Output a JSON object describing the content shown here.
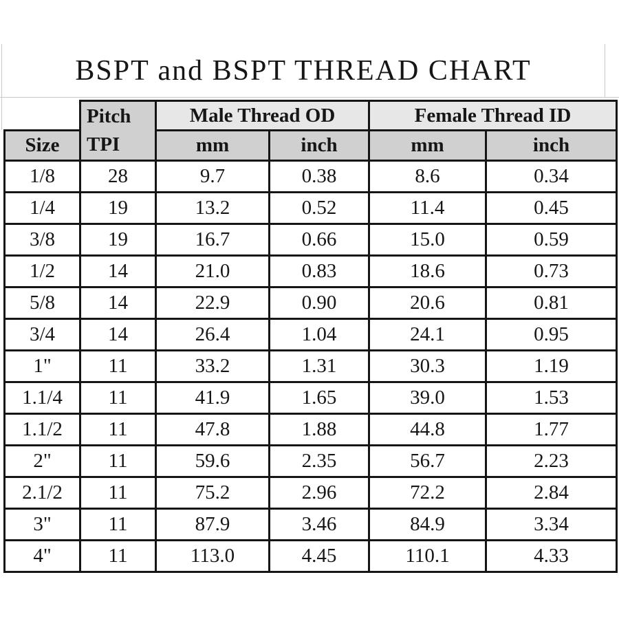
{
  "title": "BSPT and BSPT THREAD CHART",
  "table": {
    "header": {
      "size_label": "Size",
      "pitch_label": "Pitch",
      "tpi_label": "TPI",
      "male_group_label": "Male Thread OD",
      "female_group_label": "Female Thread ID",
      "male_mm_label": "mm",
      "male_inch_label": "inch",
      "female_mm_label": "mm",
      "female_inch_label": "inch"
    },
    "rows": [
      {
        "size": "1/8",
        "tpi": "28",
        "male_mm": "9.7",
        "male_inch": "0.38",
        "female_mm": "8.6",
        "female_inch": "0.34"
      },
      {
        "size": "1/4",
        "tpi": "19",
        "male_mm": "13.2",
        "male_inch": "0.52",
        "female_mm": "11.4",
        "female_inch": "0.45"
      },
      {
        "size": "3/8",
        "tpi": "19",
        "male_mm": "16.7",
        "male_inch": "0.66",
        "female_mm": "15.0",
        "female_inch": "0.59"
      },
      {
        "size": "1/2",
        "tpi": "14",
        "male_mm": "21.0",
        "male_inch": "0.83",
        "female_mm": "18.6",
        "female_inch": "0.73"
      },
      {
        "size": "5/8",
        "tpi": "14",
        "male_mm": "22.9",
        "male_inch": "0.90",
        "female_mm": "20.6",
        "female_inch": "0.81"
      },
      {
        "size": "3/4",
        "tpi": "14",
        "male_mm": "26.4",
        "male_inch": "1.04",
        "female_mm": "24.1",
        "female_inch": "0.95"
      },
      {
        "size": "1\"",
        "tpi": "11",
        "male_mm": "33.2",
        "male_inch": "1.31",
        "female_mm": "30.3",
        "female_inch": "1.19"
      },
      {
        "size": "1.1/4",
        "tpi": "11",
        "male_mm": "41.9",
        "male_inch": "1.65",
        "female_mm": "39.0",
        "female_inch": "1.53"
      },
      {
        "size": "1.1/2",
        "tpi": "11",
        "male_mm": "47.8",
        "male_inch": "1.88",
        "female_mm": "44.8",
        "female_inch": "1.77"
      },
      {
        "size": "2\"",
        "tpi": "11",
        "male_mm": "59.6",
        "male_inch": "2.35",
        "female_mm": "56.7",
        "female_inch": "2.23"
      },
      {
        "size": "2.1/2",
        "tpi": "11",
        "male_mm": "75.2",
        "male_inch": "2.96",
        "female_mm": "72.2",
        "female_inch": "2.84"
      },
      {
        "size": "3\"",
        "tpi": "11",
        "male_mm": "87.9",
        "male_inch": "3.46",
        "female_mm": "84.9",
        "female_inch": "3.34"
      },
      {
        "size": "4\"",
        "tpi": "11",
        "male_mm": "113.0",
        "male_inch": "4.45",
        "female_mm": "110.1",
        "female_inch": "4.33"
      }
    ]
  },
  "colors": {
    "group_header_bg": "#e7e7e7",
    "unit_header_bg": "#d0d0d0",
    "border": "#151515",
    "page_frame_line": "#c9c9c9",
    "background": "#ffffff",
    "text": "#161616"
  },
  "chart_data": {
    "type": "table",
    "title": "BSPT and BSPT THREAD CHART",
    "columns": [
      "Size",
      "Pitch TPI",
      "Male Thread OD mm",
      "Male Thread OD inch",
      "Female Thread ID mm",
      "Female Thread ID inch"
    ],
    "rows": [
      [
        "1/8",
        28,
        9.7,
        0.38,
        8.6,
        0.34
      ],
      [
        "1/4",
        19,
        13.2,
        0.52,
        11.4,
        0.45
      ],
      [
        "3/8",
        19,
        16.7,
        0.66,
        15.0,
        0.59
      ],
      [
        "1/2",
        14,
        21.0,
        0.83,
        18.6,
        0.73
      ],
      [
        "5/8",
        14,
        22.9,
        0.9,
        20.6,
        0.81
      ],
      [
        "3/4",
        14,
        26.4,
        1.04,
        24.1,
        0.95
      ],
      [
        "1\"",
        11,
        33.2,
        1.31,
        30.3,
        1.19
      ],
      [
        "1.1/4",
        11,
        41.9,
        1.65,
        39.0,
        1.53
      ],
      [
        "1.1/2",
        11,
        47.8,
        1.88,
        44.8,
        1.77
      ],
      [
        "2\"",
        11,
        59.6,
        2.35,
        56.7,
        2.23
      ],
      [
        "2.1/2",
        11,
        75.2,
        2.96,
        72.2,
        2.84
      ],
      [
        "3\"",
        11,
        87.9,
        3.46,
        84.9,
        3.34
      ],
      [
        "4\"",
        11,
        113.0,
        4.45,
        110.1,
        4.33
      ]
    ]
  }
}
